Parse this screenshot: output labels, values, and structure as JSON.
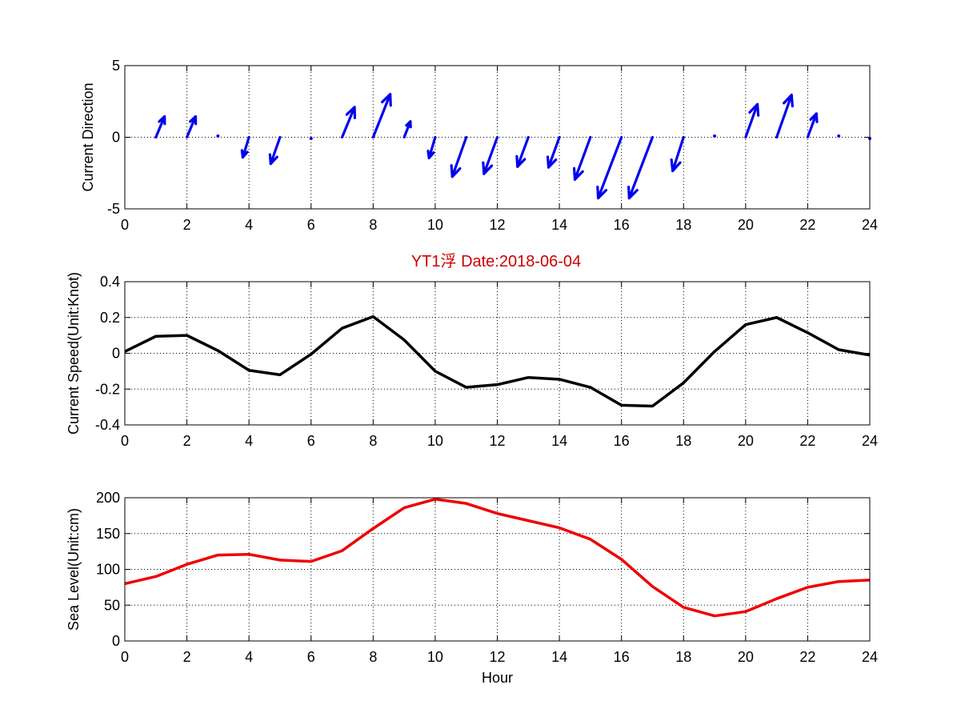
{
  "figure": {
    "title": "YT1浮    Date:2018-06-04",
    "title_color": "#cc0000"
  },
  "chart_data": [
    {
      "type": "quiver",
      "ylabel": "Current Direction",
      "xlabel": "",
      "xlim": [
        0,
        24
      ],
      "ylim": [
        -5,
        5
      ],
      "xticks": [
        "0",
        "2",
        "4",
        "6",
        "8",
        "10",
        "12",
        "14",
        "16",
        "18",
        "20",
        "22",
        "24"
      ],
      "yticks": [
        "-5",
        "0",
        "5"
      ],
      "grid": true,
      "color": "#0000ee",
      "arrows": [
        {
          "x": 1,
          "u": 0.28,
          "v": 1.45
        },
        {
          "x": 2,
          "u": 0.28,
          "v": 1.45
        },
        {
          "x": 3,
          "u": 0.05,
          "v": 0.25
        },
        {
          "x": 4,
          "u": -0.2,
          "v": -1.4
        },
        {
          "x": 5,
          "u": -0.3,
          "v": -1.85
        },
        {
          "x": 6,
          "u": 0.0,
          "v": -0.2
        },
        {
          "x": 7,
          "u": 0.4,
          "v": 2.1
        },
        {
          "x": 8,
          "u": 0.55,
          "v": 3.0
        },
        {
          "x": 9,
          "u": 0.2,
          "v": 1.1
        },
        {
          "x": 10,
          "u": -0.2,
          "v": -1.45
        },
        {
          "x": 11,
          "u": -0.45,
          "v": -2.75
        },
        {
          "x": 12,
          "u": -0.43,
          "v": -2.55
        },
        {
          "x": 13,
          "u": -0.35,
          "v": -2.05
        },
        {
          "x": 14,
          "u": -0.35,
          "v": -2.1
        },
        {
          "x": 15,
          "u": -0.5,
          "v": -2.95
        },
        {
          "x": 16,
          "u": -0.75,
          "v": -4.25
        },
        {
          "x": 17,
          "u": -0.75,
          "v": -4.25
        },
        {
          "x": 18,
          "u": -0.35,
          "v": -2.35
        },
        {
          "x": 19,
          "u": 0.02,
          "v": 0.15
        },
        {
          "x": 20,
          "u": 0.38,
          "v": 2.3
        },
        {
          "x": 21,
          "u": 0.48,
          "v": 2.95
        },
        {
          "x": 22,
          "u": 0.28,
          "v": 1.65
        },
        {
          "x": 23,
          "u": 0.03,
          "v": 0.25
        },
        {
          "x": 24,
          "u": -0.05,
          "v": -0.3
        }
      ]
    },
    {
      "type": "line",
      "ylabel": "Current Speed(Unit:Knot)",
      "xlabel": "",
      "xlim": [
        0,
        24
      ],
      "ylim": [
        -0.4,
        0.4
      ],
      "xticks": [
        "0",
        "2",
        "4",
        "6",
        "8",
        "10",
        "12",
        "14",
        "16",
        "18",
        "20",
        "22",
        "24"
      ],
      "yticks": [
        "-0.4",
        "-0.2",
        "0",
        "0.2",
        "0.4"
      ],
      "grid": true,
      "color": "#000000",
      "x": [
        0,
        1,
        2,
        3,
        4,
        5,
        6,
        7,
        8,
        9,
        10,
        11,
        12,
        13,
        14,
        15,
        16,
        17,
        18,
        19,
        20,
        21,
        22,
        23,
        24
      ],
      "y": [
        0.01,
        0.095,
        0.1,
        0.015,
        -0.095,
        -0.12,
        -0.005,
        0.14,
        0.205,
        0.075,
        -0.1,
        -0.19,
        -0.175,
        -0.135,
        -0.145,
        -0.19,
        -0.29,
        -0.295,
        -0.165,
        0.01,
        0.16,
        0.2,
        0.115,
        0.02,
        -0.01
      ]
    },
    {
      "type": "line",
      "ylabel": "Sea Level(Unit:cm)",
      "xlabel": "Hour",
      "xlim": [
        0,
        24
      ],
      "ylim": [
        0,
        200
      ],
      "xticks": [
        "0",
        "2",
        "4",
        "6",
        "8",
        "10",
        "12",
        "14",
        "16",
        "18",
        "20",
        "22",
        "24"
      ],
      "yticks": [
        "0",
        "50",
        "100",
        "150",
        "200"
      ],
      "grid": true,
      "color": "#ee0000",
      "x": [
        0,
        1,
        2,
        3,
        4,
        5,
        6,
        7,
        8,
        9,
        10,
        11,
        12,
        13,
        14,
        15,
        16,
        17,
        18,
        19,
        20,
        21,
        22,
        23,
        24
      ],
      "y": [
        80,
        90,
        107,
        120,
        121,
        113,
        111,
        126,
        157,
        186,
        198,
        192,
        178,
        168,
        158,
        142,
        114,
        76,
        47,
        35,
        41,
        59,
        75,
        83,
        85
      ]
    }
  ]
}
